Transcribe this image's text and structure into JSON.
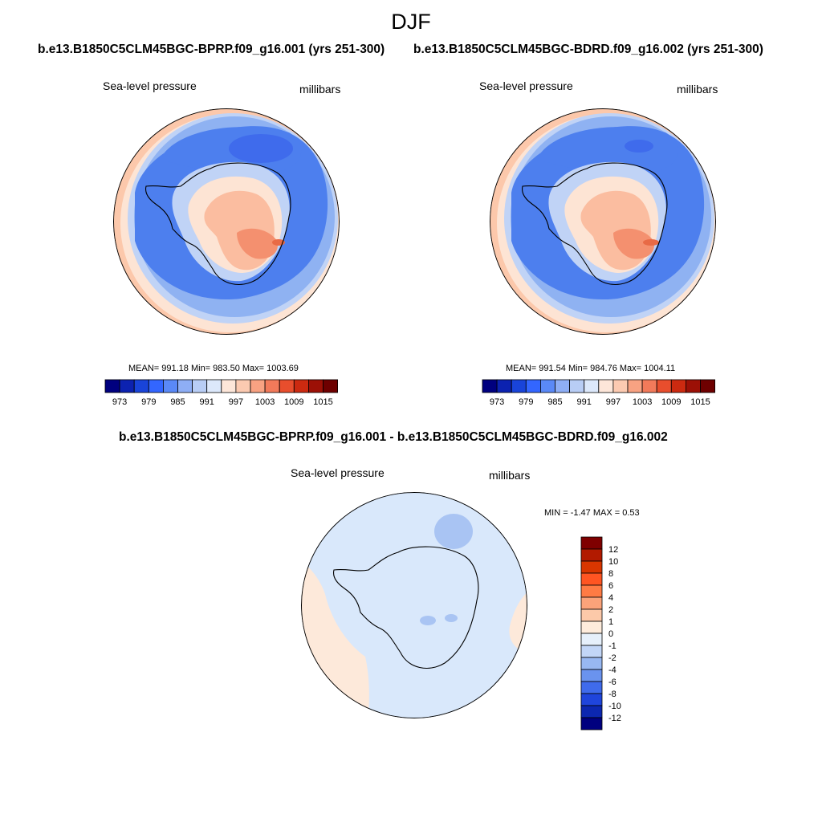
{
  "title": "DJF",
  "cases": [
    "b.e13.B1850C5CLM45BGC-BPRP.f09_g16.001 (yrs 251-300)",
    "b.e13.B1850C5CLM45BGC-BDRD.f09_g16.002 (yrs 251-300)"
  ],
  "diff_title": "b.e13.B1850C5CLM45BGC-BPRP.f09_g16.001 - b.e13.B1850C5CLM45BGC-BDRD.f09_g16.002",
  "panels": [
    {
      "field": "Sea-level pressure",
      "units": "millibars",
      "stats": "MEAN= 991.18  Min= 983.50  Max= 1003.69",
      "mean": 991.18,
      "min": 983.5,
      "max": 1003.69
    },
    {
      "field": "Sea-level pressure",
      "units": "millibars",
      "stats": "MEAN= 991.54  Min= 984.76  Max= 1004.11",
      "mean": 991.54,
      "min": 984.76,
      "max": 1004.11
    },
    {
      "field": "Sea-level pressure",
      "units": "millibars",
      "stats": "MIN =  -1.47 MAX =   0.53",
      "min": -1.47,
      "max": 0.53
    }
  ],
  "colorbar_abs": {
    "labels": [
      "973",
      "979",
      "985",
      "991",
      "997",
      "1003",
      "1009",
      "1015"
    ],
    "colors": [
      "#00007f",
      "#0c22b0",
      "#1944d9",
      "#3366ff",
      "#5a89f7",
      "#8eaef5",
      "#b8cdf5",
      "#dce8fb",
      "#fde6d9",
      "#fccab1",
      "#f8a282",
      "#f27a5a",
      "#e84e2d",
      "#cc2a10",
      "#9c1006",
      "#6e0000"
    ]
  },
  "colorbar_diff": {
    "labels": [
      "12",
      "10",
      "8",
      "6",
      "4",
      "2",
      "1",
      "0",
      "-1",
      "-2",
      "-4",
      "-6",
      "-8",
      "-10",
      "-12"
    ],
    "colors": [
      "#7f0000",
      "#b21a00",
      "#d93600",
      "#ff5522",
      "#ff7b44",
      "#fba37a",
      "#fcc9a9",
      "#feecdc",
      "#e6f0fb",
      "#c2d6f7",
      "#98b8f2",
      "#6a93ee",
      "#3f6bec",
      "#1f45dc",
      "#0c27b0",
      "#00007f"
    ]
  },
  "colors": {
    "ocean_deep": "#4d7fee",
    "ocean_mid": "#8fb2f2",
    "ocean_light": "#c0d3f6",
    "near_zero": "#dbe9fb",
    "warm_light": "#fde4d4",
    "warm_mid": "#fbbda0",
    "warm_high": "#f4906f",
    "diff_bg": "#d9e8fb",
    "diff_pos": "#fde9da",
    "diff_neg": "#a9c4f3"
  }
}
